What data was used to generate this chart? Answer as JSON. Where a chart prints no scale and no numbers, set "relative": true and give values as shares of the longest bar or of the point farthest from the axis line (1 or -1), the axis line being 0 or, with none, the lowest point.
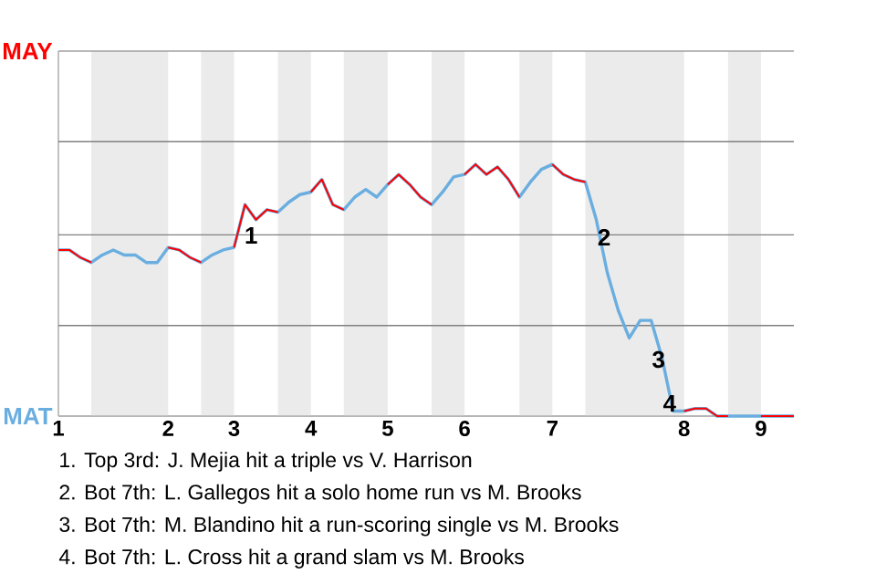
{
  "chart_data": {
    "type": "line",
    "relative": true,
    "categories": [
      "1",
      null,
      null,
      null,
      null,
      null,
      null,
      null,
      null,
      null,
      "2",
      null,
      null,
      null,
      null,
      null,
      "3",
      null,
      null,
      null,
      null,
      null,
      null,
      "4",
      null,
      null,
      null,
      null,
      null,
      null,
      "5",
      null,
      null,
      null,
      null,
      null,
      null,
      "6",
      null,
      null,
      null,
      null,
      null,
      null,
      null,
      "7",
      null,
      null,
      null,
      null,
      null,
      null,
      null,
      null,
      null,
      null,
      null,
      "8",
      null,
      null,
      null,
      null,
      null,
      null,
      "9",
      null,
      null,
      null
    ],
    "ref_lines": [
      {
        "axis": "y",
        "value": 0,
        "label": "MAT",
        "color": "#b0b0b0"
      },
      {
        "axis": "y",
        "value": 0.36,
        "label": null,
        "color": "#808080"
      },
      {
        "axis": "y",
        "value": 0.72,
        "label": null,
        "color": "#808080"
      },
      {
        "axis": "y",
        "value": 1.09,
        "label": null,
        "color": "#808080"
      },
      {
        "axis": "y",
        "value": 1.45,
        "label": "MAY",
        "color": "#a0a0a0"
      }
    ],
    "series": [
      {
        "color": "#6aaee0",
        "values": [
          0.66,
          0.66,
          0.63,
          0.61,
          0.64,
          0.66,
          0.64,
          0.64,
          0.61,
          0.61,
          0.67,
          0.66,
          0.63,
          0.61,
          0.64,
          0.66,
          0.67,
          0.84,
          0.78,
          0.82,
          0.81,
          0.85,
          0.88,
          0.89,
          0.94,
          0.84,
          0.82,
          0.87,
          0.9,
          0.87,
          0.92,
          0.96,
          0.92,
          0.87,
          0.84,
          0.89,
          0.95,
          0.96,
          1,
          0.96,
          0.99,
          0.94,
          0.87,
          0.93,
          0.98,
          1,
          0.96,
          0.94,
          0.93,
          0.78,
          0.57,
          0.42,
          0.31,
          0.38,
          0.38,
          0.23,
          0.02,
          0.02,
          0.03,
          0.03,
          0,
          0,
          0,
          0,
          0,
          0,
          0,
          0
        ]
      },
      {
        "color": "#ff0000",
        "values": [
          0.66,
          0.66,
          0.63,
          0.61,
          null,
          null,
          null,
          null,
          null,
          null,
          0.67,
          0.66,
          0.63,
          0.61,
          null,
          null,
          0.67,
          0.84,
          0.78,
          0.82,
          0.81,
          null,
          null,
          0.89,
          0.94,
          0.84,
          0.82,
          null,
          null,
          null,
          0.92,
          0.96,
          0.92,
          0.87,
          0.84,
          null,
          null,
          0.96,
          1,
          0.96,
          0.99,
          0.94,
          0.87,
          null,
          null,
          1,
          0.96,
          0.94,
          0.93,
          null,
          null,
          null,
          null,
          null,
          null,
          null,
          null,
          0.02,
          0.03,
          0.03,
          0,
          0,
          null,
          null,
          0,
          0,
          0,
          0
        ]
      }
    ],
    "annotations": [
      "1",
      "2",
      "3",
      "4",
      "1. Top 3rd: J. Mejia hit a triple vs V. Harrison",
      "2. Bot 7th: L. Gallegos hit a solo home run vs M. Brooks",
      "3. Bot 7th: M. Blandino hit a run-scoring single vs M. Brooks",
      "4. Bot 7th: L. Cross hit a grand slam vs M. Brooks"
    ]
  }
}
